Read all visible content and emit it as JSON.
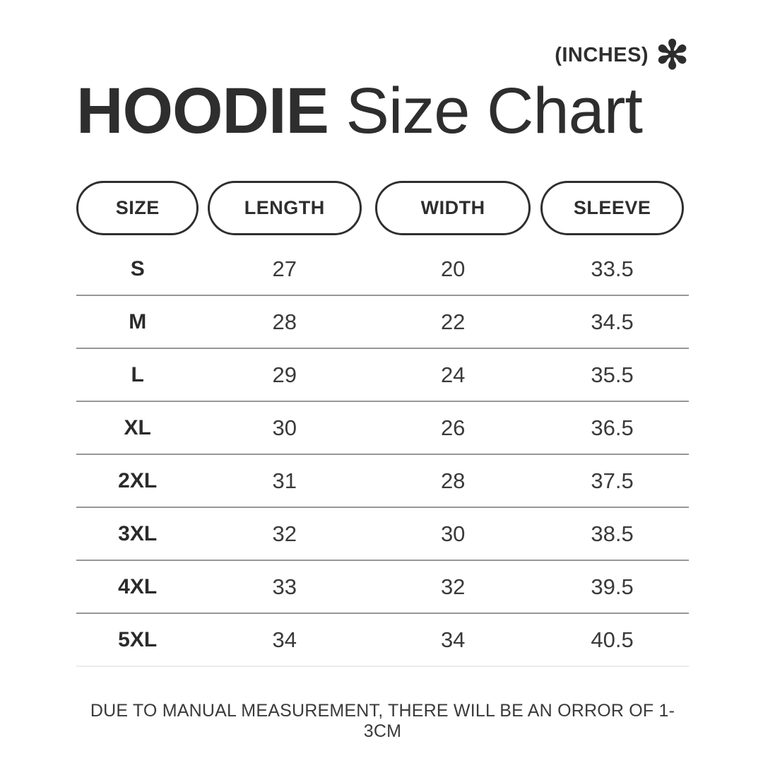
{
  "header": {
    "units_label": "(INCHES)",
    "asterisk_glyph": "✻",
    "title_bold": "HOODIE",
    "title_regular": " Size Chart"
  },
  "table": {
    "columns": [
      "SIZE",
      "LENGTH",
      "WIDTH",
      "SLEEVE"
    ],
    "rows": [
      [
        "S",
        "27",
        "20",
        "33.5"
      ],
      [
        "M",
        "28",
        "22",
        "34.5"
      ],
      [
        "L",
        "29",
        "24",
        "35.5"
      ],
      [
        "XL",
        "30",
        "26",
        "36.5"
      ],
      [
        "2XL",
        "31",
        "28",
        "37.5"
      ],
      [
        "3XL",
        "32",
        "30",
        "38.5"
      ],
      [
        "4XL",
        "33",
        "32",
        "39.5"
      ],
      [
        "5XL",
        "34",
        "34",
        "40.5"
      ]
    ]
  },
  "footer": {
    "note": "DUE TO MANUAL MEASUREMENT, THERE WILL BE AN ORROR OF 1-3CM"
  },
  "colors": {
    "text": "#2e2e2e",
    "divider": "#979797",
    "divider_light": "#ececec",
    "background": "#ffffff"
  }
}
